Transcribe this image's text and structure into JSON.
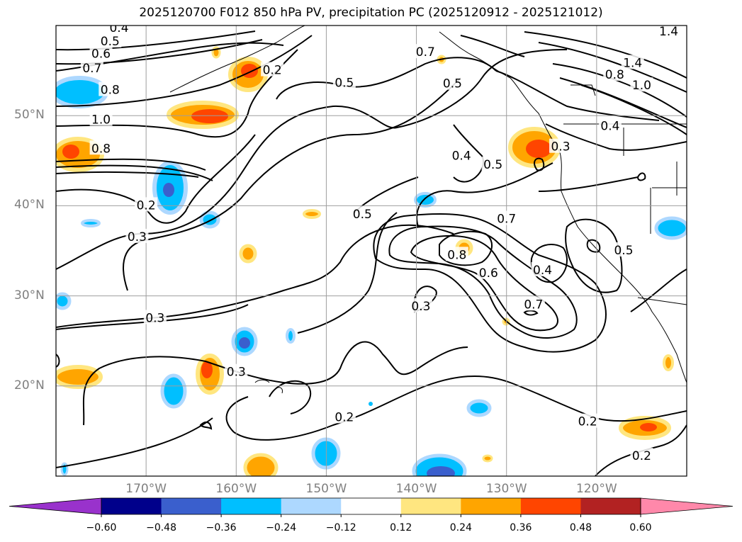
{
  "title": "2025120700 F012 850 hPa PV, precipitation PC (2025120912 - 2025121012)",
  "map": {
    "lon_range": [
      -180,
      -110
    ],
    "lat_range": [
      10,
      60
    ],
    "lat_labels": [
      {
        "lat": 50,
        "text": "50°N"
      },
      {
        "lat": 40,
        "text": "40°N"
      },
      {
        "lat": 30,
        "text": "30°N"
      },
      {
        "lat": 20,
        "text": "20°N"
      }
    ],
    "lon_labels": [
      {
        "lon": -170,
        "text": "170°W"
      },
      {
        "lon": -160,
        "text": "160°W"
      },
      {
        "lon": -150,
        "text": "150°W"
      },
      {
        "lon": -140,
        "text": "140°W"
      },
      {
        "lon": -130,
        "text": "130°W"
      },
      {
        "lon": -120,
        "text": "120°W"
      }
    ],
    "grid_color": "#9e9e9e",
    "contour_labels": [
      {
        "text": "0.4",
        "lon": -173,
        "lat": 59.7
      },
      {
        "text": "0.5",
        "lon": -174,
        "lat": 58.2
      },
      {
        "text": "0.6",
        "lon": -175,
        "lat": 56.8
      },
      {
        "text": "0.7",
        "lon": -176,
        "lat": 55.2
      },
      {
        "text": "0.8",
        "lon": -174,
        "lat": 52.8
      },
      {
        "text": "1.0",
        "lon": -175,
        "lat": 49.5
      },
      {
        "text": "0.8",
        "lon": -175,
        "lat": 46.3
      },
      {
        "text": "0.2",
        "lon": -170,
        "lat": 40.0
      },
      {
        "text": "0.3",
        "lon": -171,
        "lat": 36.5
      },
      {
        "text": "0.3",
        "lon": -169,
        "lat": 27.5
      },
      {
        "text": "0.3",
        "lon": -160,
        "lat": 21.5
      },
      {
        "text": "0.2",
        "lon": -148,
        "lat": 16.5
      },
      {
        "text": "0.5",
        "lon": -146,
        "lat": 39.0
      },
      {
        "text": "0.5",
        "lon": -148,
        "lat": 53.6
      },
      {
        "text": "0.7",
        "lon": -139,
        "lat": 57.0
      },
      {
        "text": "0.5",
        "lon": -136,
        "lat": 53.5
      },
      {
        "text": "0.4",
        "lon": -135,
        "lat": 45.5
      },
      {
        "text": "0.5",
        "lon": -131.5,
        "lat": 44.5
      },
      {
        "text": "0.7",
        "lon": -130,
        "lat": 38.5
      },
      {
        "text": "0.8",
        "lon": -135.5,
        "lat": 34.5
      },
      {
        "text": "0.6",
        "lon": -132,
        "lat": 32.5
      },
      {
        "text": "0.4",
        "lon": -126,
        "lat": 32.8
      },
      {
        "text": "0.7",
        "lon": -127,
        "lat": 29.0
      },
      {
        "text": "0.3",
        "lon": -139.5,
        "lat": 28.8
      },
      {
        "text": "0.3",
        "lon": -124,
        "lat": 46.5
      },
      {
        "text": "0.4",
        "lon": -118.5,
        "lat": 48.8
      },
      {
        "text": "0.5",
        "lon": -117,
        "lat": 35.0
      },
      {
        "text": "0.8",
        "lon": -118,
        "lat": 54.5
      },
      {
        "text": "1.0",
        "lon": -115,
        "lat": 53.3
      },
      {
        "text": "1.4",
        "lon": -116,
        "lat": 55.8
      },
      {
        "text": "1.4",
        "lon": -112,
        "lat": 59.3
      },
      {
        "text": "0.2",
        "lon": -121,
        "lat": 16.0
      },
      {
        "text": "0.2",
        "lon": -115,
        "lat": 12.2
      },
      {
        "text": "0.2",
        "lon": -156,
        "lat": 55.0
      }
    ]
  },
  "colorbar": {
    "ticks": [
      "−0.60",
      "−0.48",
      "−0.36",
      "−0.24",
      "−0.12",
      "0.12",
      "0.24",
      "0.36",
      "0.48",
      "0.60"
    ],
    "colors": [
      "#9932cc",
      "#00008b",
      "#3a5fcd",
      "#00bfff",
      "#add8ff",
      "#ffffff",
      "#ffe680",
      "#ffa500",
      "#ff4500",
      "#b22222",
      "#ff88aa"
    ]
  }
}
